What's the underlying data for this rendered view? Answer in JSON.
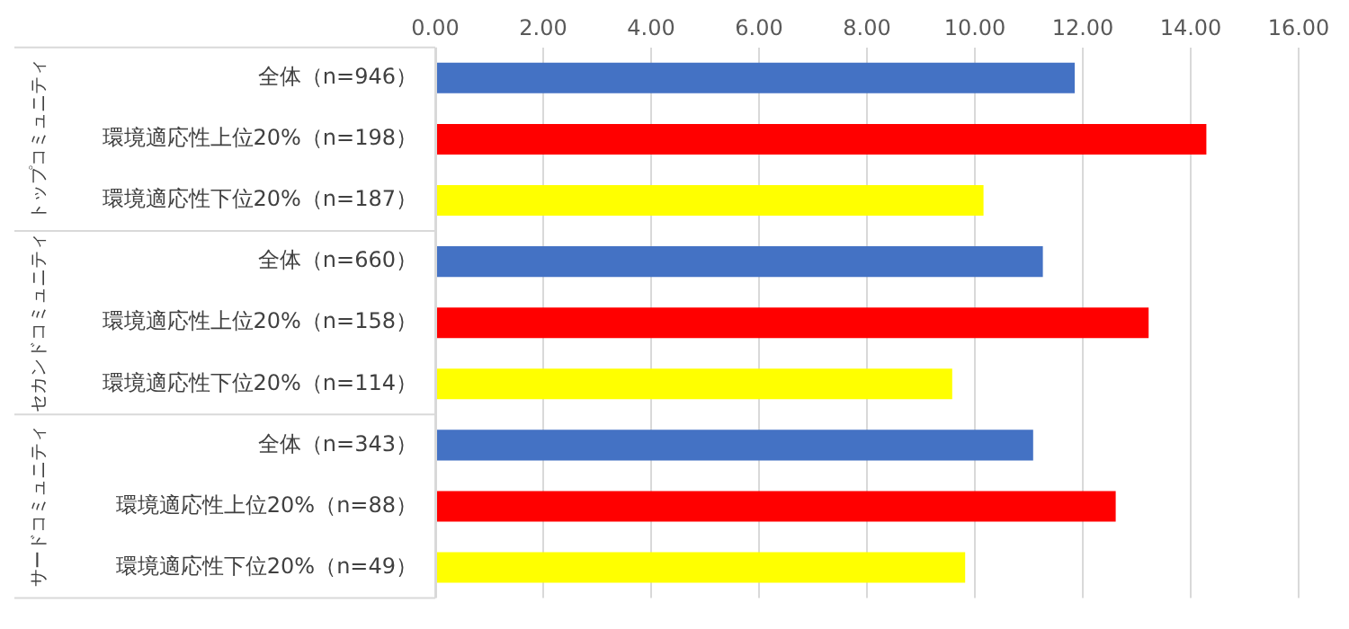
{
  "chart_data": {
    "type": "bar",
    "orientation": "horizontal",
    "categories": [
      "全体（n=946）",
      "環境適応性上位20%（n=198）",
      "環境適応性下位20%（n=187）",
      "全体（n=660）",
      "環境適応性上位20%（n=158）",
      "環境適応性下位20%（n=114）",
      "全体（n=343）",
      "環境適応性上位20%（n=88）",
      "環境適応性下位20%（n=49）"
    ],
    "values": [
      11.85,
      14.29,
      10.16,
      11.26,
      13.22,
      9.58,
      11.08,
      12.61,
      9.82
    ],
    "colors": [
      "#4472c4",
      "#ff0000",
      "#ffff00",
      "#4472c4",
      "#ff0000",
      "#ffff00",
      "#4472c4",
      "#ff0000",
      "#ffff00"
    ],
    "xlim": [
      0,
      16
    ],
    "xticks": [
      {
        "value": 0,
        "label": "0.00"
      },
      {
        "value": 2,
        "label": "2.00"
      },
      {
        "value": 4,
        "label": "4.00"
      },
      {
        "value": 6,
        "label": "6.00"
      },
      {
        "value": 8,
        "label": "8.00"
      },
      {
        "value": 10,
        "label": "10.00"
      },
      {
        "value": 12,
        "label": "12.00"
      },
      {
        "value": 14,
        "label": "14.00"
      },
      {
        "value": 16,
        "label": "16.00"
      }
    ],
    "annotations": [
      "トップコミュニティ",
      "セカンドコミュニティ",
      "サードコミュニティ"
    ],
    "grid": "x",
    "legend": false
  }
}
